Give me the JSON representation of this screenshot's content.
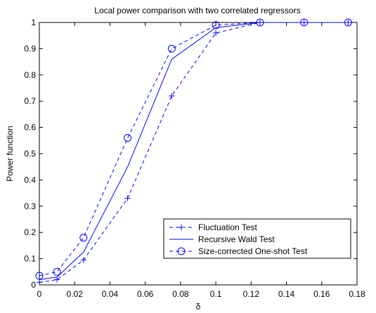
{
  "chart_data": {
    "type": "line",
    "title": "Local power comparison with two correlated regressors",
    "xlabel": "δ",
    "ylabel": "Power function",
    "xlim": [
      0,
      0.18
    ],
    "ylim": [
      0,
      1
    ],
    "xticks": [
      0,
      0.02,
      0.04,
      0.06,
      0.08,
      0.1,
      0.12,
      0.14,
      0.16,
      0.18
    ],
    "xtick_labels": [
      "0",
      "0.02",
      "0.04",
      "0.06",
      "0.08",
      "0.1",
      "0.12",
      "0.14",
      "0.16",
      "0.18"
    ],
    "yticks": [
      0,
      0.1,
      0.2,
      0.3,
      0.4,
      0.5,
      0.6,
      0.7,
      0.8,
      0.9,
      1
    ],
    "ytick_labels": [
      "0",
      "0.1",
      "0.2",
      "0.3",
      "0.4",
      "0.5",
      "0.6",
      "0.7",
      "0.8",
      "0.9",
      "1"
    ],
    "grid": false,
    "legend_position": "bottom-right",
    "series_color": "#0000ff",
    "series": [
      {
        "name": "Fluctuation Test",
        "line": "dashed",
        "marker": "plus",
        "x": [
          0,
          0.01,
          0.025,
          0.05,
          0.075,
          0.1,
          0.125,
          0.15,
          0.175
        ],
        "y": [
          0.01,
          0.02,
          0.095,
          0.33,
          0.72,
          0.96,
          1.0,
          1.0,
          1.0
        ]
      },
      {
        "name": "Recursive Wald Test",
        "line": "solid",
        "marker": "none",
        "x": [
          0,
          0.01,
          0.025,
          0.05,
          0.075,
          0.1,
          0.125,
          0.15,
          0.175
        ],
        "y": [
          0.02,
          0.03,
          0.125,
          0.45,
          0.86,
          0.98,
          1.0,
          1.0,
          1.0
        ]
      },
      {
        "name": "Size-corrected One-shot Test",
        "line": "dashed",
        "marker": "circle",
        "x": [
          0,
          0.01,
          0.025,
          0.05,
          0.075,
          0.1,
          0.125,
          0.15,
          0.175
        ],
        "y": [
          0.035,
          0.05,
          0.18,
          0.56,
          0.9,
          0.99,
          1.0,
          1.0,
          1.0
        ]
      }
    ]
  }
}
